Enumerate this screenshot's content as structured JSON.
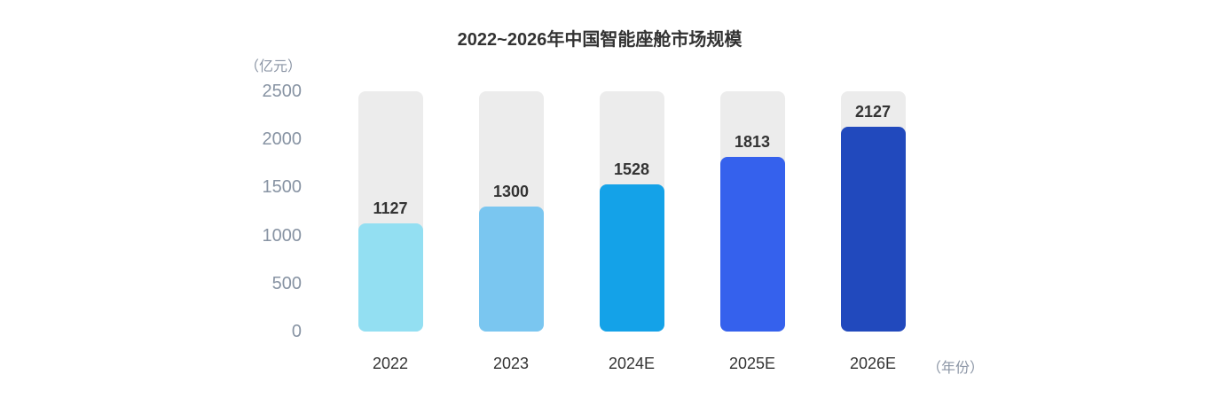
{
  "title": "2022~2026年中国智能座舱市场规模",
  "y_axis": {
    "unit_label": "（亿元）",
    "ticks": [
      2500,
      2000,
      1500,
      1000,
      500,
      0
    ]
  },
  "x_axis": {
    "unit_label": "（年份）"
  },
  "colors": {
    "bar_track": "#ECECEC",
    "bars": [
      "#93DFF2",
      "#7AC6F0",
      "#14A2E8",
      "#3561ED",
      "#2149BD"
    ],
    "title_text": "#333333",
    "value_text": "#333333",
    "axis_text": "#8793A3"
  },
  "chart_data": {
    "type": "bar",
    "title": "2022~2026年中国智能座舱市场规模",
    "categories": [
      "2022",
      "2023",
      "2024E",
      "2025E",
      "2026E"
    ],
    "values": [
      1127,
      1300,
      1528,
      1813,
      2127
    ],
    "series": [
      {
        "name": "中国智能座舱市场规模",
        "values": [
          1127,
          1300,
          1528,
          1813,
          2127
        ]
      }
    ],
    "xlabel": "（年份）",
    "ylabel": "（亿元）",
    "ylim": [
      0,
      2500
    ],
    "yticks": [
      0,
      500,
      1000,
      1500,
      2000,
      2500
    ],
    "grid": false,
    "legend": false,
    "data_labels": true,
    "bar_colors": [
      "#93DFF2",
      "#7AC6F0",
      "#14A2E8",
      "#3561ED",
      "#2149BD"
    ],
    "track_color": "#ECECEC"
  }
}
